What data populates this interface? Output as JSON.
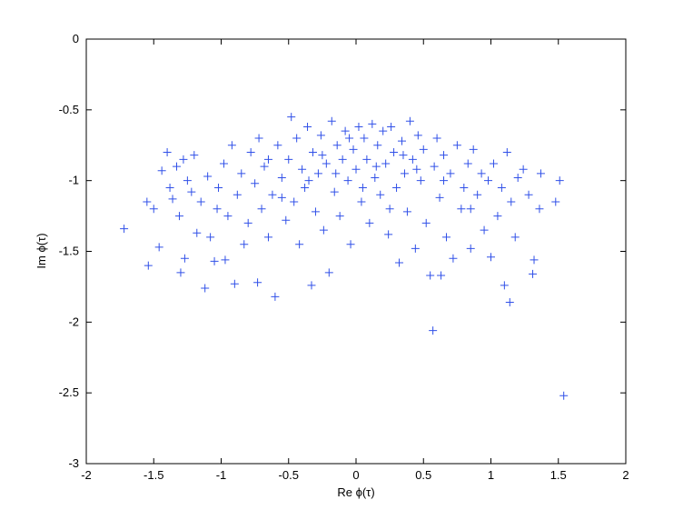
{
  "chart_data": {
    "type": "scatter",
    "xlabel": "Re ϕ(τ)",
    "ylabel": "Im ϕ(τ)",
    "color": "#3050e8",
    "marker": "+",
    "xlim": [
      -2,
      2
    ],
    "ylim": [
      -3,
      0
    ],
    "xticks": [
      -2,
      -1.5,
      -1,
      -0.5,
      0,
      0.5,
      1,
      1.5,
      2
    ],
    "yticks": [
      -3,
      -2.5,
      -2,
      -1.5,
      -1,
      -0.5,
      0
    ],
    "x": [
      -1.72,
      -1.55,
      -1.54,
      -1.5,
      -1.46,
      -1.44,
      -1.4,
      -1.38,
      -1.36,
      -1.33,
      -1.31,
      -1.3,
      -1.28,
      -1.27,
      -1.25,
      -1.22,
      -1.2,
      -1.18,
      -1.15,
      -1.12,
      -1.1,
      -1.08,
      -1.05,
      -1.03,
      -1.02,
      -0.98,
      -0.97,
      -0.95,
      -0.92,
      -0.9,
      -0.88,
      -0.85,
      -0.83,
      -0.8,
      -0.78,
      -0.75,
      -0.73,
      -0.72,
      -0.7,
      -0.68,
      -0.65,
      -0.62,
      -0.6,
      -0.58,
      -0.55,
      -0.52,
      -0.5,
      -0.48,
      -0.46,
      -0.44,
      -0.42,
      -0.4,
      -0.38,
      -0.36,
      -0.33,
      -0.32,
      -0.3,
      -0.28,
      -0.26,
      -0.24,
      -0.22,
      -0.2,
      -0.18,
      -0.16,
      -0.14,
      -0.12,
      -0.1,
      -0.08,
      -0.06,
      -0.04,
      -0.02,
      0,
      0.02,
      0.04,
      0.06,
      0.08,
      0.1,
      0.12,
      0.14,
      0.16,
      0.18,
      0.2,
      0.22,
      0.24,
      0.26,
      0.28,
      0.3,
      0.32,
      0.34,
      0.36,
      0.38,
      0.4,
      0.42,
      0.44,
      0.46,
      0.48,
      0.5,
      0.52,
      0.55,
      0.57,
      0.58,
      0.6,
      0.62,
      0.63,
      0.65,
      0.67,
      0.7,
      0.72,
      0.75,
      0.78,
      0.8,
      0.83,
      0.85,
      0.87,
      0.9,
      0.93,
      0.95,
      0.98,
      1.0,
      1.02,
      1.05,
      1.08,
      1.1,
      1.12,
      1.14,
      1.15,
      1.18,
      1.2,
      1.24,
      1.28,
      1.31,
      1.32,
      1.36,
      1.37,
      1.48,
      1.51,
      1.54,
      -0.05,
      0.15,
      0.35,
      -0.25,
      0.05,
      0.25,
      -0.15,
      0.45,
      -0.35,
      0.65,
      -0.55,
      0.85,
      -0.65
    ],
    "values": [
      -1.34,
      -1.15,
      -1.6,
      -1.2,
      -1.47,
      -0.93,
      -0.8,
      -1.05,
      -1.13,
      -0.9,
      -1.25,
      -1.65,
      -0.85,
      -1.55,
      -1.0,
      -1.08,
      -0.82,
      -1.37,
      -1.15,
      -1.76,
      -0.97,
      -1.4,
      -1.57,
      -1.2,
      -1.05,
      -0.88,
      -1.56,
      -1.25,
      -0.75,
      -1.73,
      -1.1,
      -0.95,
      -1.45,
      -1.3,
      -0.8,
      -1.02,
      -1.72,
      -0.7,
      -1.2,
      -0.9,
      -1.4,
      -1.1,
      -1.82,
      -0.75,
      -0.98,
      -1.28,
      -0.85,
      -0.55,
      -1.15,
      -0.7,
      -1.45,
      -0.92,
      -1.05,
      -0.62,
      -1.74,
      -0.8,
      -1.22,
      -0.95,
      -0.68,
      -1.35,
      -0.88,
      -1.65,
      -0.58,
      -1.08,
      -0.75,
      -1.25,
      -0.85,
      -0.65,
      -1.0,
      -1.45,
      -0.78,
      -0.92,
      -0.62,
      -1.15,
      -0.7,
      -0.85,
      -1.3,
      -0.6,
      -0.98,
      -0.75,
      -1.1,
      -0.65,
      -0.88,
      -1.38,
      -0.62,
      -0.8,
      -1.05,
      -1.58,
      -0.72,
      -0.95,
      -1.22,
      -0.58,
      -0.85,
      -1.48,
      -0.68,
      -1.0,
      -0.78,
      -1.3,
      -1.67,
      -2.06,
      -0.9,
      -0.7,
      -1.12,
      -1.67,
      -0.82,
      -1.4,
      -0.95,
      -1.55,
      -0.75,
      -1.2,
      -1.05,
      -0.88,
      -1.48,
      -0.78,
      -1.1,
      -0.95,
      -1.35,
      -1.0,
      -1.54,
      -0.88,
      -1.25,
      -1.05,
      -1.74,
      -0.8,
      -1.86,
      -1.15,
      -1.4,
      -0.98,
      -0.92,
      -1.1,
      -1.66,
      -1.56,
      -1.2,
      -0.95,
      -1.15,
      -1.0,
      -2.52,
      -0.7,
      -0.9,
      -0.82,
      -0.82,
      -1.05,
      -1.2,
      -0.95,
      -0.92,
      -1.0,
      -1.0,
      -1.12,
      -1.2,
      -0.85
    ]
  }
}
